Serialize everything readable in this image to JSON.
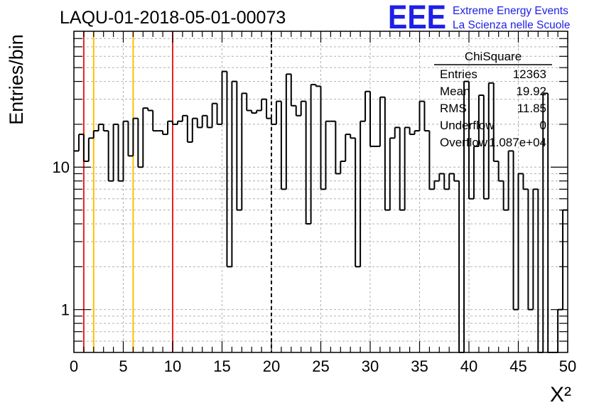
{
  "title": "LAQU-01-2018-05-01-00073",
  "logo": {
    "mark": "EEE",
    "line1": "Extreme Energy Events",
    "line2": "La Scienza nelle Scuole",
    "color": "#1f1fe8"
  },
  "stats": {
    "name": "ChiSquare",
    "rows": [
      {
        "label": "Entries",
        "value": "12363"
      },
      {
        "label": "Mean",
        "value": "19.92"
      },
      {
        "label": "RMS",
        "value": "11.85"
      },
      {
        "label": "Underflow",
        "value": "0"
      },
      {
        "label": "Overflow",
        "value": "1.087e+04"
      }
    ]
  },
  "chart_data": {
    "type": "histogram",
    "xlabel": "X²",
    "ylabel": "Entries/bin",
    "xlim": [
      0,
      50
    ],
    "ylim": [
      0.5,
      90
    ],
    "yscale": "log",
    "grid": true,
    "bin_width": 0.5,
    "xticks": [
      0,
      5,
      10,
      15,
      20,
      25,
      30,
      35,
      40,
      45,
      50
    ],
    "yticks": [
      1,
      10
    ],
    "values": [
      13,
      17,
      11,
      16,
      18,
      20,
      18,
      8,
      20,
      8,
      21,
      12,
      22,
      10,
      26,
      25,
      18,
      18,
      17,
      21,
      20,
      21,
      23,
      15,
      22,
      19,
      23,
      19,
      28,
      20,
      47,
      2,
      40,
      5,
      33,
      25,
      24,
      25,
      30,
      22,
      20,
      29,
      7,
      45,
      27,
      23,
      29,
      4,
      38,
      37,
      7,
      21,
      21,
      9,
      11,
      17,
      16,
      2,
      21,
      34,
      14,
      14,
      31,
      5,
      16,
      19,
      5,
      19,
      17,
      18,
      29,
      18,
      7,
      8,
      9,
      7,
      9,
      8,
      0,
      40,
      6,
      14,
      32,
      6,
      39,
      11,
      8,
      5,
      13,
      1,
      9,
      7,
      1,
      7,
      0,
      33,
      0,
      0,
      1,
      5
    ],
    "vlines": [
      {
        "x": 1,
        "color": "#e8211d",
        "style": "solid"
      },
      {
        "x": 2,
        "color": "#ffc000",
        "style": "solid"
      },
      {
        "x": 6,
        "color": "#ffc000",
        "style": "solid"
      },
      {
        "x": 10,
        "color": "#e8211d",
        "style": "solid"
      },
      {
        "x": 20,
        "color": "#000000",
        "style": "dashed"
      }
    ]
  }
}
